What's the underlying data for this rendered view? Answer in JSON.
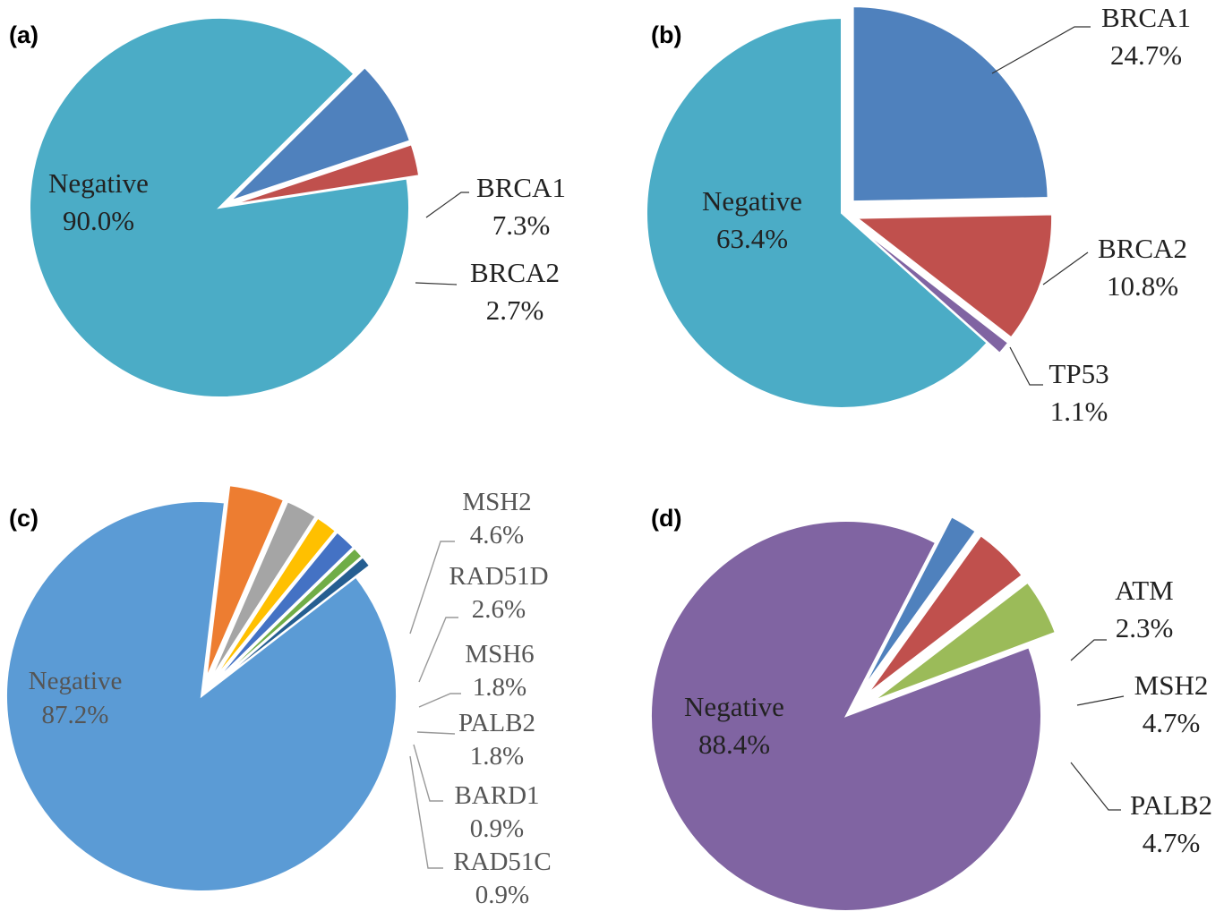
{
  "chart_data": [
    {
      "panel": "(a)",
      "type": "pie",
      "slices": [
        {
          "name": "Negative",
          "value": 90.0,
          "label": "90.0%",
          "color": "#4BACC6"
        },
        {
          "name": "BRCA1",
          "value": 7.3,
          "label": "7.3%",
          "color": "#4F81BD"
        },
        {
          "name": "BRCA2",
          "value": 2.7,
          "label": "2.7%",
          "color": "#C0504D"
        }
      ]
    },
    {
      "panel": "(b)",
      "type": "pie",
      "slices": [
        {
          "name": "BRCA1",
          "value": 24.7,
          "label": "24.7%",
          "color": "#4F81BD"
        },
        {
          "name": "BRCA2",
          "value": 10.8,
          "label": "10.8%",
          "color": "#C0504D"
        },
        {
          "name": "TP53",
          "value": 1.1,
          "label": "1.1%",
          "color": "#8064A2"
        },
        {
          "name": "Negative",
          "value": 63.4,
          "label": "63.4%",
          "color": "#4BACC6"
        }
      ]
    },
    {
      "panel": "(c)",
      "type": "pie",
      "slices": [
        {
          "name": "Negative",
          "value": 87.2,
          "label": "87.2%",
          "color": "#5B9BD5"
        },
        {
          "name": "MSH2",
          "value": 4.6,
          "label": "4.6%",
          "color": "#ED7D31"
        },
        {
          "name": "RAD51D",
          "value": 2.6,
          "label": "2.6%",
          "color": "#A5A5A5"
        },
        {
          "name": "MSH6",
          "value": 1.8,
          "label": "1.8%",
          "color": "#FFC000"
        },
        {
          "name": "PALB2",
          "value": 1.8,
          "label": "1.8%",
          "color": "#4472C4"
        },
        {
          "name": "BARD1",
          "value": 0.9,
          "label": "0.9%",
          "color": "#70AD47"
        },
        {
          "name": "RAD51C",
          "value": 0.9,
          "label": "0.9%",
          "color": "#255E91"
        }
      ]
    },
    {
      "panel": "(d)",
      "type": "pie",
      "slices": [
        {
          "name": "Negative",
          "value": 88.4,
          "label": "88.4%",
          "color": "#8064A2"
        },
        {
          "name": "ATM",
          "value": 2.3,
          "label": "2.3%",
          "color": "#4F81BD"
        },
        {
          "name": "MSH2",
          "value": 4.7,
          "label": "4.7%",
          "color": "#C0504D"
        },
        {
          "name": "PALB2",
          "value": 4.7,
          "label": "4.7%",
          "color": "#9BBB59"
        }
      ]
    }
  ]
}
